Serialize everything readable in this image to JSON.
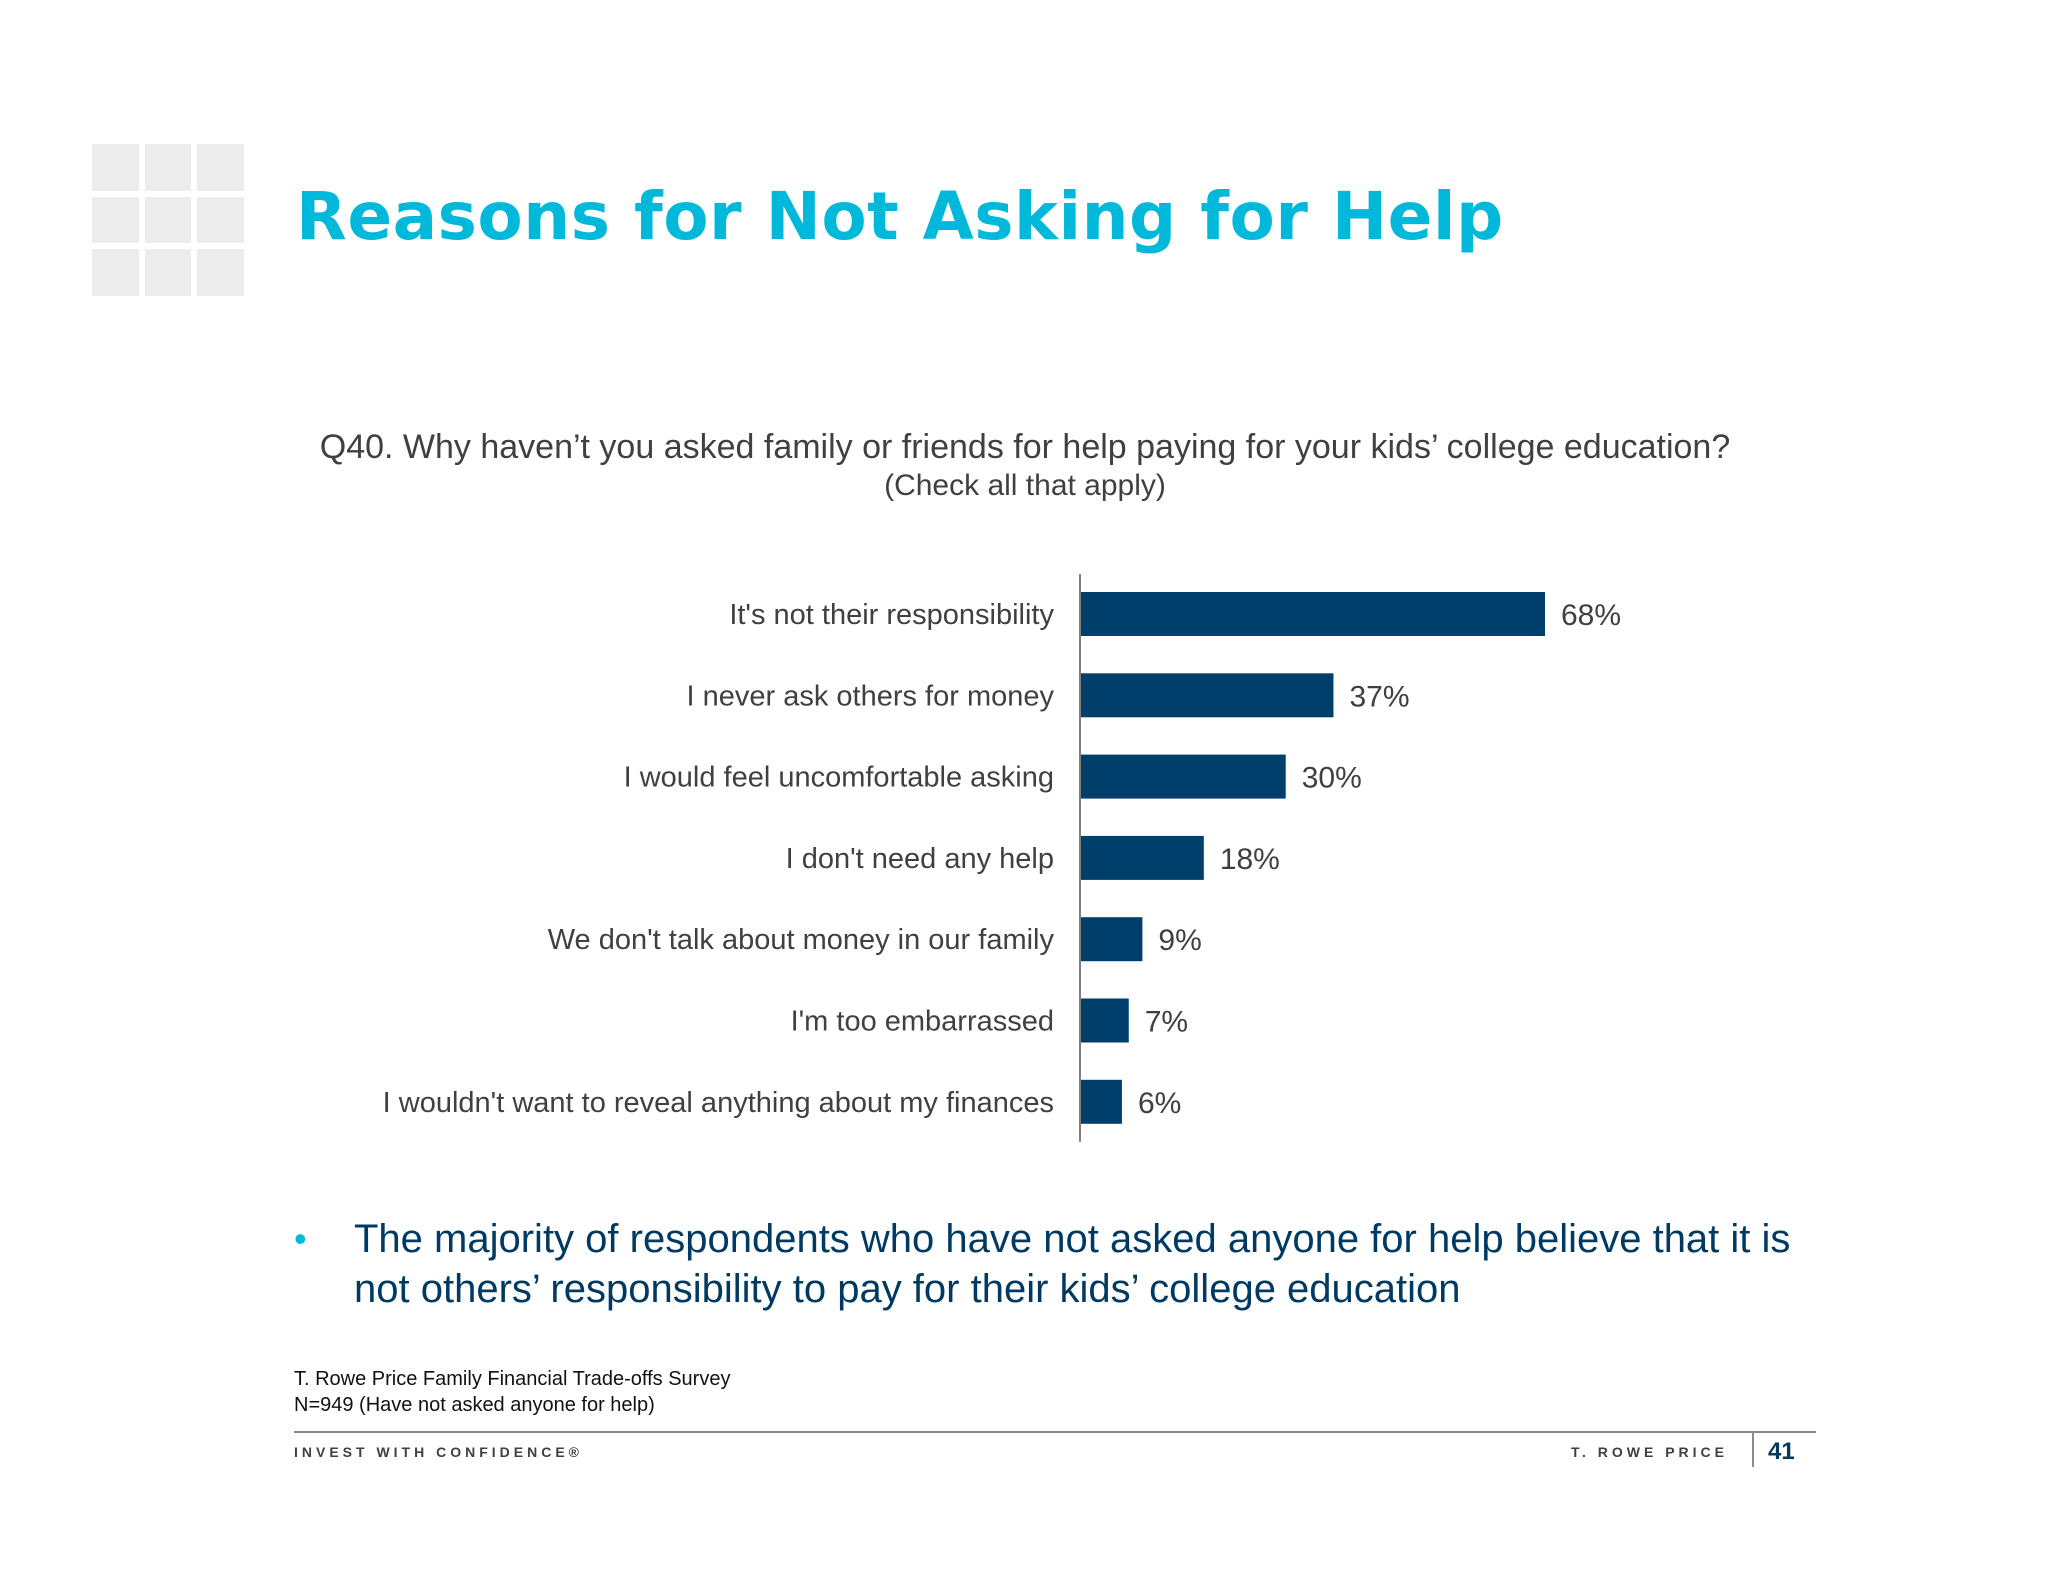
{
  "page": {
    "title": "Reasons for Not Asking for Help",
    "question": "Q40. Why haven’t you asked family or friends for help paying for your kids’ college education?",
    "question_sub": "(Check all that apply)",
    "bullet": "The majority of respondents who have not asked anyone for help believe that it is not others’ responsibility to pay for their kids’ college education",
    "source_line1": "T. Rowe Price Family Financial Trade-offs Survey",
    "source_line2": "N=949 (Have not asked anyone for help)",
    "footer_tagline": "INVEST WITH CONFIDENCE®",
    "footer_brand": "T. ROWE PRICE",
    "page_number": "41"
  },
  "colors": {
    "title": "#00b9da",
    "bar": "#003f6b",
    "bullet_text": "#003a63"
  },
  "icons": {
    "logo": "grid-logo-icon",
    "bullet": "bullet-dot-icon"
  },
  "chart_data": {
    "type": "bar",
    "orientation": "horizontal",
    "categories": [
      "It's not their responsibility",
      "I never ask others for money",
      "I would feel uncomfortable asking",
      "I don't need any help",
      "We don't talk about money in our family",
      "I'm too embarrassed",
      "I wouldn't want to reveal anything about my finances"
    ],
    "values": [
      68,
      37,
      30,
      18,
      9,
      7,
      6
    ],
    "value_labels": [
      "68%",
      "37%",
      "30%",
      "18%",
      "9%",
      "7%",
      "6%"
    ],
    "title": "",
    "xlabel": "",
    "ylabel": "",
    "xlim": [
      0,
      100
    ],
    "grid": false,
    "legend": "none"
  }
}
